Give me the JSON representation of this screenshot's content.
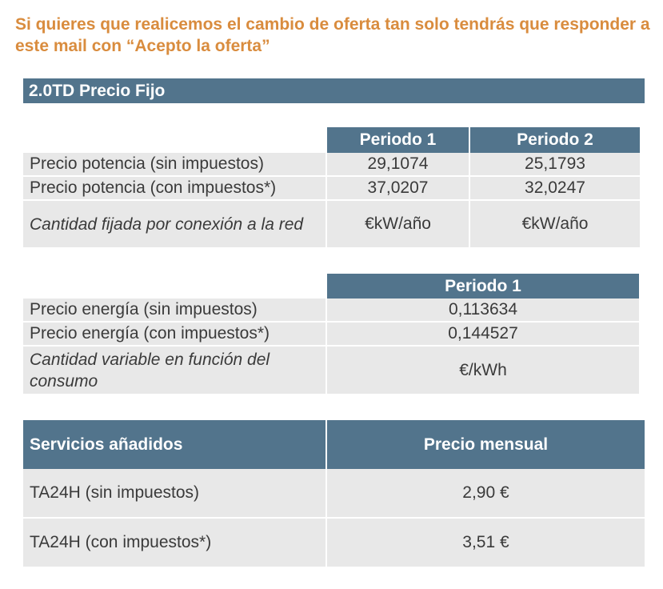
{
  "intro_text": "Si quieres que realicemos el cambio de oferta tan solo tendrás que responder a este mail con “Acepto la oferta”",
  "plan_title": "2.0TD Precio Fijo",
  "potencia": {
    "headers": [
      "Periodo 1",
      "Periodo 2"
    ],
    "rows": [
      {
        "label": "Precio potencia (sin impuestos)",
        "p1": "29,1074",
        "p2": "25,1793"
      },
      {
        "label": "Precio potencia (con impuestos*)",
        "p1": "37,0207",
        "p2": "32,0247"
      },
      {
        "label": "Cantidad fijada por conexión a la red",
        "p1": "€kW/año",
        "p2": "€kW/año"
      }
    ]
  },
  "energia": {
    "headers": [
      "Periodo 1"
    ],
    "rows": [
      {
        "label": "Precio energía (sin impuestos)",
        "p1": "0,113634"
      },
      {
        "label": "Precio energía (con impuestos*)",
        "p1": "0,144527"
      },
      {
        "label": "Cantidad variable en función del consumo",
        "p1": "€/kWh"
      }
    ]
  },
  "servicios": {
    "headers": [
      "Servicios añadidos",
      "Precio mensual"
    ],
    "rows": [
      {
        "label": "TA24H (sin impuestos)",
        "price": "2,90 €"
      },
      {
        "label": "TA24H (con impuestos*)",
        "price": "3,51 €"
      }
    ]
  },
  "colors": {
    "accent_text": "#d98c3e",
    "header_bg": "#52748c",
    "cell_bg": "#e8e8e8"
  }
}
